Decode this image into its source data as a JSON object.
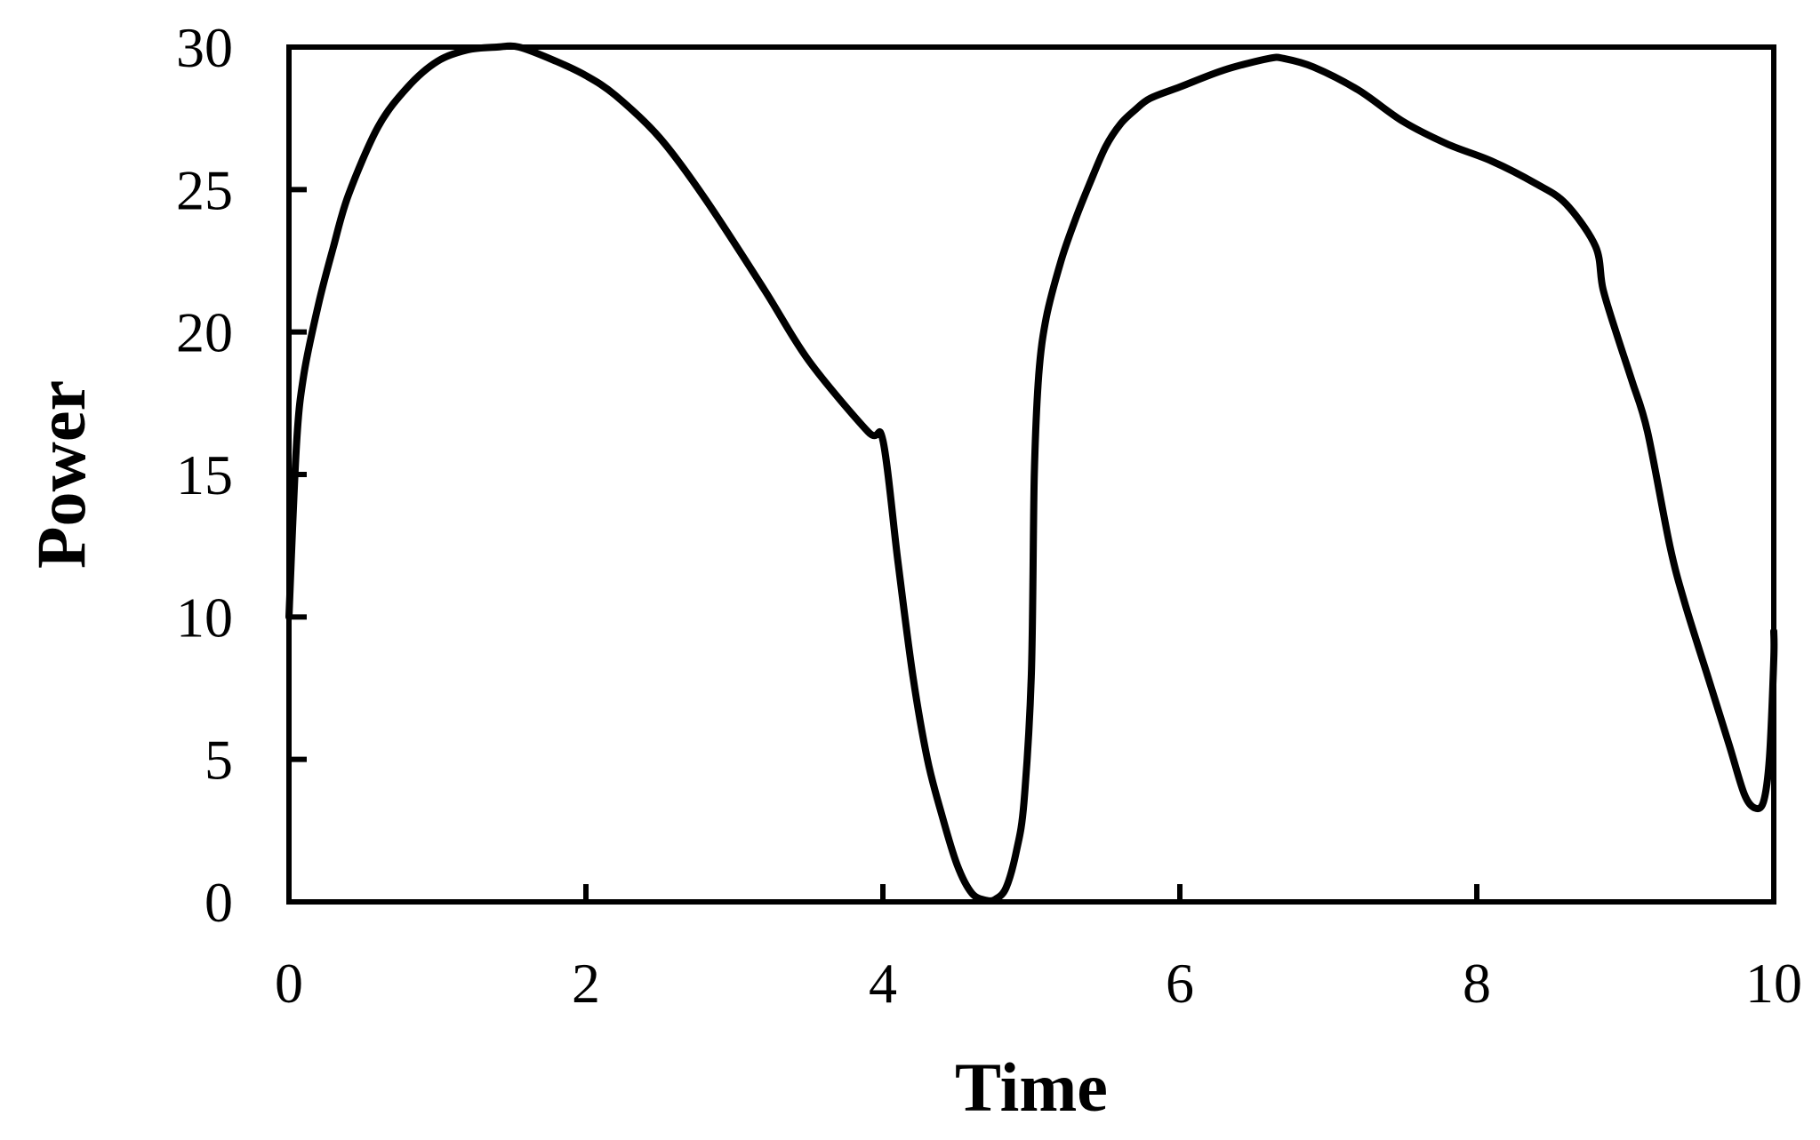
{
  "chart_data": {
    "type": "line",
    "title": "",
    "xlabel": "Time",
    "ylabel": "Power",
    "xlim": [
      0,
      10
    ],
    "ylim": [
      0,
      30
    ],
    "xticks": [
      0,
      2,
      4,
      6,
      8,
      10
    ],
    "yticks": [
      0,
      5,
      10,
      15,
      20,
      25,
      30
    ],
    "grid": false,
    "line_color": "#000000",
    "series": [
      {
        "x": [
          0,
          0.05,
          0.1,
          0.2,
          0.3,
          0.4,
          0.6,
          0.8,
          1.0,
          1.2,
          1.4,
          1.55,
          1.8,
          2.0,
          2.2,
          2.5,
          2.8,
          3.2,
          3.5,
          3.9,
          4.0,
          4.1,
          4.2,
          4.3,
          4.4,
          4.5,
          4.6,
          4.7,
          4.76,
          4.83,
          4.9,
          4.95,
          5.0,
          5.02,
          5.05,
          5.1,
          5.2,
          5.3,
          5.4,
          5.5,
          5.6,
          5.7,
          5.8,
          6.0,
          6.3,
          6.6,
          6.7,
          6.9,
          7.2,
          7.5,
          7.8,
          8.1,
          8.4,
          8.6,
          8.8,
          8.85,
          8.95,
          9.0,
          9.05,
          9.15,
          9.3,
          9.4,
          9.55,
          9.7,
          9.8,
          9.87,
          9.93,
          9.97,
          10.0,
          10.0
        ],
        "y": [
          10,
          16,
          18.5,
          21,
          23,
          24.8,
          27.2,
          28.6,
          29.5,
          29.9,
          30,
          30,
          29.5,
          29,
          28.3,
          26.8,
          24.7,
          21.5,
          19,
          16.5,
          16.2,
          12,
          8,
          5,
          3,
          1.3,
          0.3,
          0.05,
          0.1,
          0.5,
          1.8,
          3.5,
          8,
          15,
          18.5,
          20.5,
          22.5,
          24,
          25.3,
          26.5,
          27.3,
          27.8,
          28.2,
          28.6,
          29.2,
          29.6,
          29.6,
          29.3,
          28.5,
          27.4,
          26.6,
          26.0,
          25.2,
          24.5,
          23,
          21.5,
          19.8,
          19.0,
          18.2,
          16.5,
          12.5,
          10.5,
          8,
          5.5,
          3.8,
          3.3,
          3.5,
          5.0,
          8.5,
          9.5
        ]
      }
    ]
  }
}
